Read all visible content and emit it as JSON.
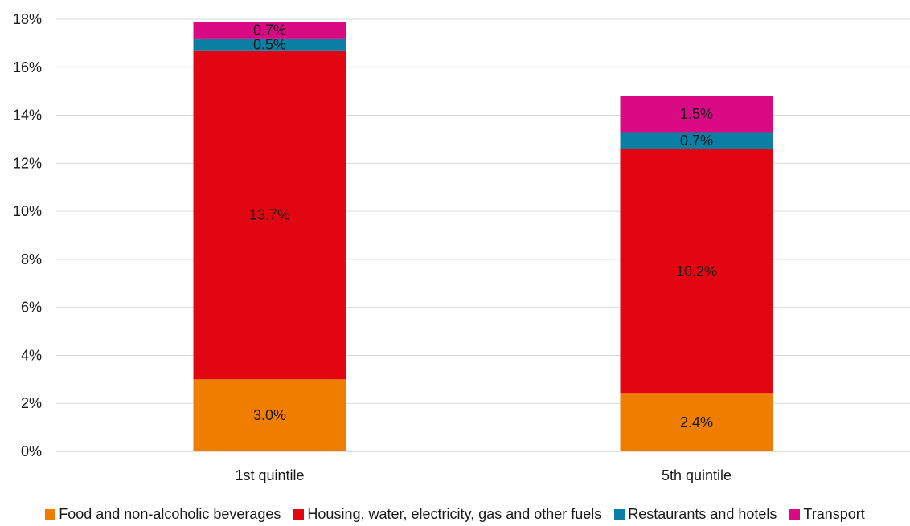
{
  "chart_data": {
    "type": "bar",
    "stacked": true,
    "categories": [
      "1st quintile",
      "5th quintile"
    ],
    "series": [
      {
        "name": "Food and non-alcoholic beverages",
        "values": [
          3.0,
          2.4
        ],
        "labels": [
          "3.0%",
          "2.4%"
        ],
        "color": "#EE7D00"
      },
      {
        "name": "Housing, water, electricity, gas and other fuels",
        "values": [
          13.7,
          10.2
        ],
        "labels": [
          "13.7%",
          "10.2%"
        ],
        "color": "#E20612"
      },
      {
        "name": "Restaurants and hotels",
        "values": [
          0.5,
          0.7
        ],
        "labels": [
          "0.5%",
          "0.7%"
        ],
        "color": "#0A7EA3"
      },
      {
        "name": "Transport",
        "values": [
          0.7,
          1.5
        ],
        "labels": [
          "0.7%",
          "1.5%"
        ],
        "color": "#DA0A85"
      }
    ],
    "ylim": [
      0,
      18
    ],
    "yticks": [
      0,
      2,
      4,
      6,
      8,
      10,
      12,
      14,
      16,
      18
    ],
    "ytick_labels": [
      "0%",
      "2%",
      "4%",
      "6%",
      "8%",
      "10%",
      "12%",
      "14%",
      "16%",
      "18%"
    ],
    "title": "",
    "xlabel": "",
    "ylabel": "",
    "grid": true,
    "legend_position": "bottom"
  }
}
